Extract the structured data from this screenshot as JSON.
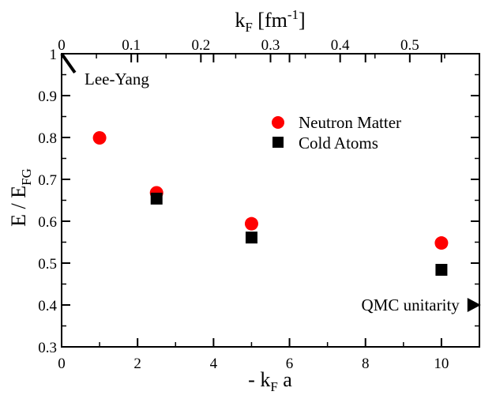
{
  "chart_data": {
    "type": "scatter",
    "xlabel": "- k",
    "xlabel_sub": "F",
    "xlabel_tail": " a",
    "ylabel": "E / E",
    "ylabel_sub": "FG",
    "top_axis_label": "k",
    "top_axis_label_sub": "F",
    "top_axis_label_unit": " [fm",
    "top_axis_label_sup": "-1",
    "top_axis_label_end": "]",
    "xlim": [
      0,
      11
    ],
    "ylim": [
      0.3,
      1.0
    ],
    "top_xlim": [
      0,
      0.6
    ],
    "x_ticks": [
      0,
      2,
      4,
      6,
      8,
      10
    ],
    "x_tick_labels": [
      "0",
      "2",
      "4",
      "6",
      "8",
      "10"
    ],
    "y_ticks": [
      0.3,
      0.4,
      0.5,
      0.6,
      0.7,
      0.8,
      0.9,
      1.0
    ],
    "y_tick_labels": [
      "0.3",
      "0.4",
      "0.5",
      "0.6",
      "0.7",
      "0.8",
      "0.9",
      "1"
    ],
    "top_ticks": [
      0,
      0.1,
      0.2,
      0.3,
      0.4,
      0.5
    ],
    "top_tick_labels": [
      "0",
      "0.1",
      "0.2",
      "0.3",
      "0.4",
      "0.5"
    ],
    "series": [
      {
        "name": "Neutron Matter",
        "marker": "circle",
        "color": "#ff0000",
        "x": [
          1,
          2.5,
          5,
          10
        ],
        "y": [
          0.799,
          0.668,
          0.594,
          0.548
        ]
      },
      {
        "name": "Cold Atoms",
        "marker": "square",
        "color": "#000000",
        "x": [
          2.5,
          5,
          10
        ],
        "y": [
          0.654,
          0.561,
          0.484
        ]
      }
    ],
    "legend_position": "upper-right",
    "annotations": [
      {
        "name": "lee-yang",
        "text": "Lee-Yang",
        "line_from": [
          0,
          1.0
        ],
        "line_to": [
          0.35,
          0.955
        ]
      },
      {
        "name": "qmc-unitarity",
        "text": "QMC unitarity",
        "marker": "triangle-right",
        "x": 10.85,
        "y": 0.4
      }
    ]
  }
}
